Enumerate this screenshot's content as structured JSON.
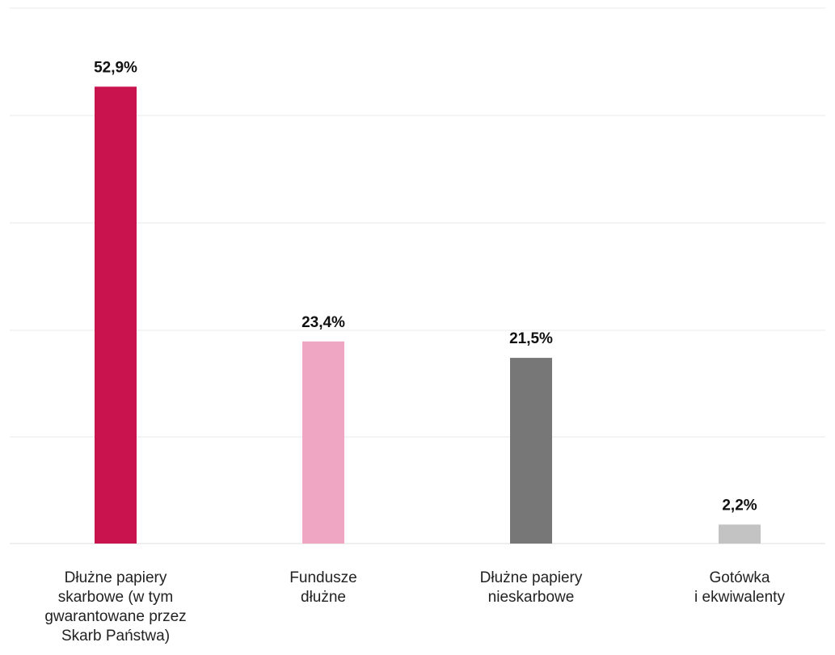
{
  "chart_data": {
    "type": "bar",
    "categories": [
      "Dłużne papiery skarbowe (w tym gwarantowane przez Skarb Państwa)",
      "Fundusze dłużne",
      "Dłużne papiery nieskarbowe",
      "Gotówka i ekwiwalenty"
    ],
    "category_lines": [
      [
        "Dłużne papiery",
        "skarbowe (w tym",
        "gwarantowane przez",
        "Skarb Państwa)"
      ],
      [
        "Fundusze",
        "dłużne"
      ],
      [
        "Dłużne papiery",
        "nieskarbowe"
      ],
      [
        "Gotówka",
        "i ekwiwalenty"
      ]
    ],
    "values": [
      52.9,
      23.4,
      21.5,
      2.2
    ],
    "value_labels": [
      "52,9%",
      "23,4%",
      "21,5%",
      "2,2%"
    ],
    "colors": [
      "#c8134f",
      "#eea6c3",
      "#777777",
      "#c3c3c3"
    ],
    "title": "",
    "xlabel": "",
    "ylabel": "",
    "ylim": [
      0,
      62
    ],
    "grid": true,
    "legend": "none"
  }
}
